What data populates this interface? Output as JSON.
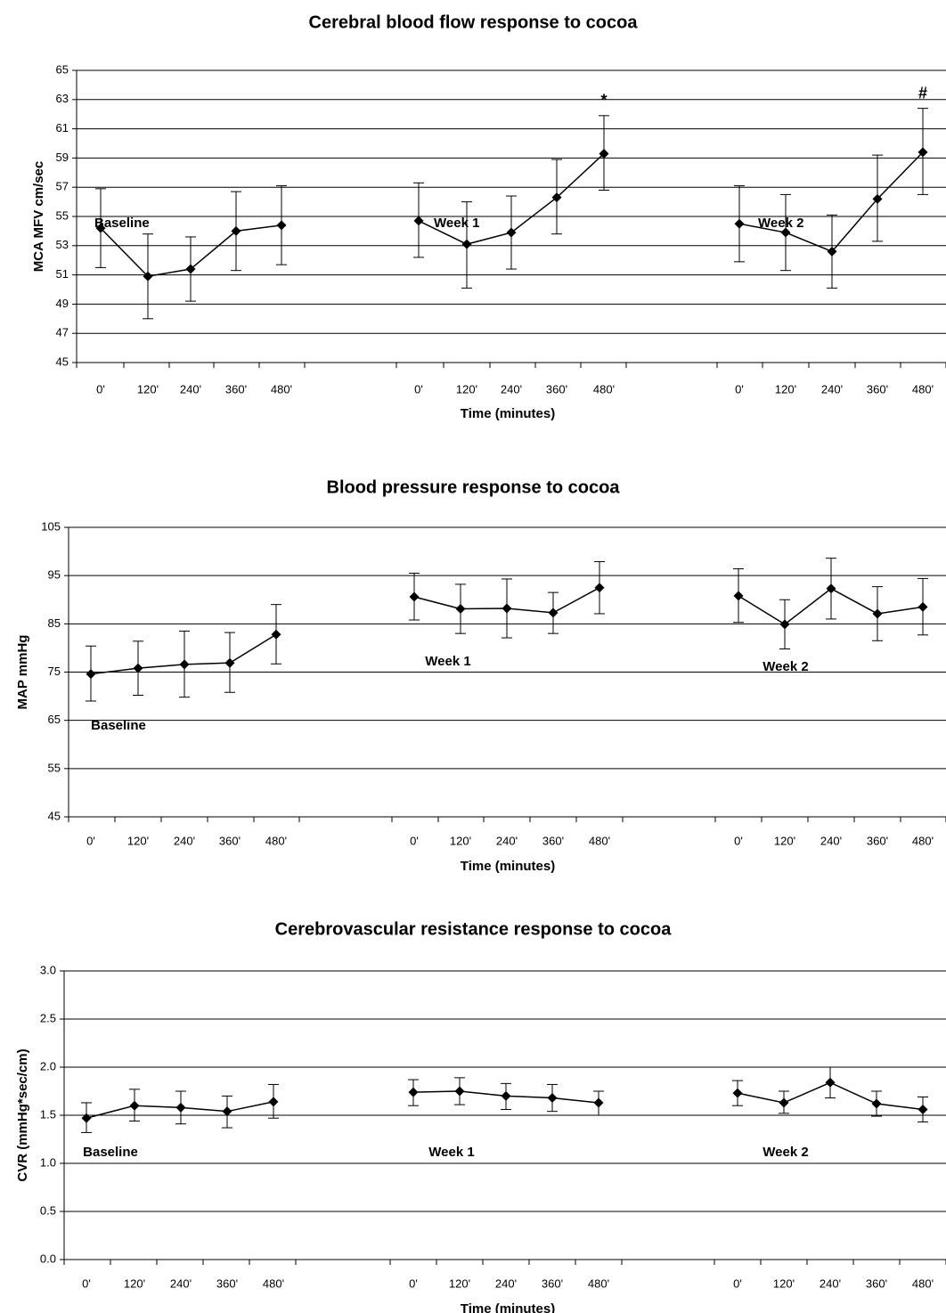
{
  "chart_data": [
    {
      "type": "line",
      "title": "Cerebral blood flow response to cocoa",
      "ylabel": "MCA MFV cm/sec",
      "xlabel": "Time (minutes)",
      "ylim": [
        45,
        65
      ],
      "yticks": [
        "45",
        "47",
        "49",
        "51",
        "53",
        "55",
        "57",
        "59",
        "61",
        "63",
        "65"
      ],
      "grid": true,
      "categories": [
        "0'",
        "120'",
        "240'",
        "360'",
        "480'"
      ],
      "series": [
        {
          "name": "Baseline",
          "values": [
            54.2,
            50.9,
            51.4,
            54.0,
            54.4
          ],
          "err_low": [
            51.5,
            48.0,
            49.2,
            51.3,
            51.7
          ],
          "err_high": [
            56.9,
            53.8,
            53.6,
            56.7,
            57.1
          ]
        },
        {
          "name": "Week 1",
          "values": [
            54.7,
            53.1,
            53.9,
            56.3,
            59.3
          ],
          "err_low": [
            52.2,
            50.1,
            51.4,
            53.8,
            56.8
          ],
          "err_high": [
            57.3,
            56.0,
            56.4,
            58.9,
            61.9
          ]
        },
        {
          "name": "Week 2",
          "values": [
            54.5,
            53.9,
            52.6,
            56.2,
            59.4
          ],
          "err_low": [
            51.9,
            51.3,
            50.1,
            53.3,
            56.5
          ],
          "err_high": [
            57.1,
            56.5,
            55.1,
            59.2,
            62.4
          ]
        }
      ],
      "annotations": [
        "*",
        "#"
      ]
    },
    {
      "type": "line",
      "title": "Blood pressure response to cocoa",
      "ylabel": "MAP mmHg",
      "xlabel": "Time (minutes)",
      "ylim": [
        45,
        105
      ],
      "yticks": [
        "45",
        "55",
        "65",
        "75",
        "85",
        "95",
        "105"
      ],
      "grid": true,
      "categories": [
        "0'",
        "120'",
        "240'",
        "360'",
        "480'"
      ],
      "series": [
        {
          "name": "Baseline",
          "values": [
            74.6,
            75.8,
            76.6,
            76.9,
            82.8
          ],
          "err_low": [
            69.0,
            70.2,
            69.8,
            70.8,
            76.7
          ],
          "err_high": [
            80.4,
            81.4,
            83.5,
            83.2,
            89.0
          ]
        },
        {
          "name": "Week 1",
          "values": [
            90.6,
            88.1,
            88.2,
            87.3,
            92.5
          ],
          "err_low": [
            85.8,
            83.0,
            82.1,
            83.0,
            87.1
          ],
          "err_high": [
            95.5,
            93.2,
            94.3,
            91.5,
            97.9
          ]
        },
        {
          "name": "Week 2",
          "values": [
            90.8,
            84.9,
            92.3,
            87.1,
            88.5
          ],
          "err_low": [
            85.3,
            79.8,
            86.0,
            81.5,
            82.7
          ],
          "err_high": [
            96.4,
            90.0,
            98.6,
            92.7,
            94.4
          ]
        }
      ]
    },
    {
      "type": "line",
      "title": "Cerebrovascular resistance response to cocoa",
      "ylabel": "CVR (mmHg*sec/cm)",
      "xlabel": "Time (minutes)",
      "ylim": [
        0,
        3
      ],
      "yticks": [
        "0.0",
        "0.5",
        "1.0",
        "1.5",
        "2.0",
        "2.5",
        "3.0"
      ],
      "grid": true,
      "categories": [
        "0'",
        "120'",
        "240'",
        "360'",
        "480'"
      ],
      "series": [
        {
          "name": "Baseline",
          "values": [
            1.47,
            1.6,
            1.58,
            1.54,
            1.64
          ],
          "err_low": [
            1.32,
            1.44,
            1.41,
            1.37,
            1.47
          ],
          "err_high": [
            1.63,
            1.77,
            1.75,
            1.7,
            1.82
          ]
        },
        {
          "name": "Week 1",
          "values": [
            1.74,
            1.75,
            1.7,
            1.68,
            1.63
          ],
          "err_low": [
            1.6,
            1.61,
            1.56,
            1.54,
            1.5
          ],
          "err_high": [
            1.87,
            1.89,
            1.83,
            1.82,
            1.75
          ]
        },
        {
          "name": "Week 2",
          "values": [
            1.73,
            1.63,
            1.84,
            1.62,
            1.56
          ],
          "err_low": [
            1.6,
            1.52,
            1.68,
            1.49,
            1.43
          ],
          "err_high": [
            1.86,
            1.75,
            2.0,
            1.75,
            1.69
          ]
        }
      ]
    }
  ]
}
